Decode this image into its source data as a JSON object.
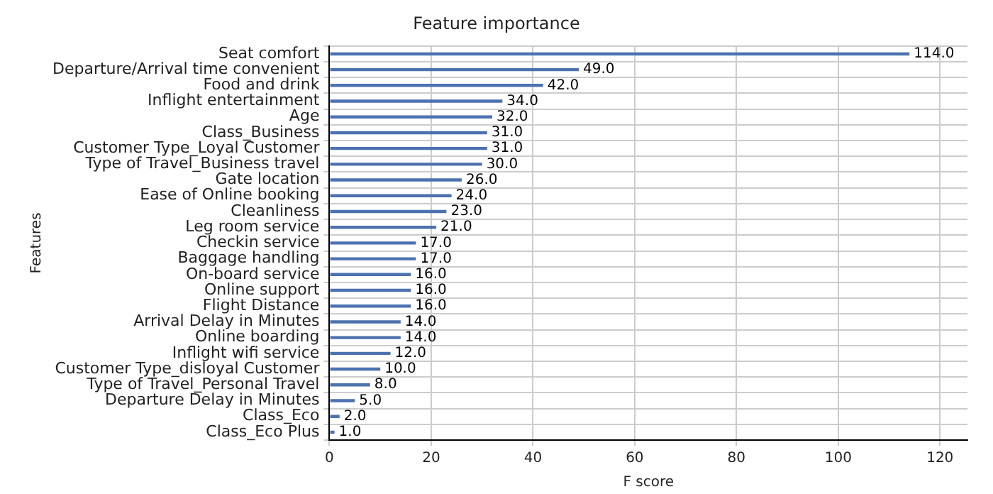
{
  "chart_data": {
    "type": "bar",
    "orientation": "horizontal",
    "title": "Feature importance",
    "xlabel": "F score",
    "ylabel": "Features",
    "categories": [
      "Seat comfort",
      "Departure/Arrival time convenient",
      "Food and drink",
      "Inflight entertainment",
      "Age",
      "Class_Business",
      "Customer Type_Loyal Customer",
      "Type of Travel_Business travel",
      "Gate location",
      "Ease of Online booking",
      "Cleanliness",
      "Leg room service",
      "Checkin service",
      "Baggage handling",
      "On-board service",
      "Online support",
      "Flight Distance",
      "Arrival Delay in Minutes",
      "Online boarding",
      "Inflight wifi service",
      "Customer Type_disloyal Customer",
      "Type of Travel_Personal Travel",
      "Departure Delay in Minutes",
      "Class_Eco",
      "Class_Eco Plus"
    ],
    "values": [
      114,
      49,
      42,
      34,
      32,
      31,
      31,
      30,
      26,
      24,
      23,
      21,
      17,
      17,
      16,
      16,
      16,
      14,
      14,
      12,
      10,
      8,
      5,
      2,
      1
    ],
    "value_labels": [
      "114.0",
      "49.0",
      "42.0",
      "34.0",
      "32.0",
      "31.0",
      "31.0",
      "30.0",
      "26.0",
      "24.0",
      "23.0",
      "21.0",
      "17.0",
      "17.0",
      "16.0",
      "16.0",
      "16.0",
      "14.0",
      "14.0",
      "12.0",
      "10.0",
      "8.0",
      "5.0",
      "2.0",
      "1.0"
    ],
    "color": "#4c72b0",
    "xlim": [
      0,
      125.4
    ],
    "xticks": [
      0,
      20,
      40,
      60,
      80,
      100,
      120
    ],
    "grid": true,
    "legend": false
  }
}
